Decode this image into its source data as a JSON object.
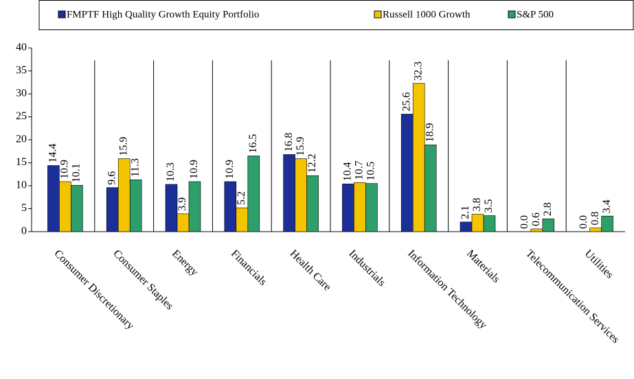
{
  "chart_data": {
    "type": "bar",
    "categories": [
      "Consumer Discretionary",
      "Consumer Staples",
      "Energy",
      "Financials",
      "Health Care",
      "Industrials",
      "Information Technology",
      "Materials",
      "Telecommunication Services",
      "Utilities"
    ],
    "series": [
      {
        "name": "FMPTF High Quality Growth Equity Portfolio",
        "color": "#1c2f99",
        "values": [
          14.4,
          9.6,
          10.3,
          10.9,
          16.8,
          10.4,
          25.6,
          2.1,
          0,
          0
        ],
        "value_labels": [
          "14.4",
          "9.6",
          "10.3",
          "10.9",
          "16.8",
          "10.4",
          "25.6",
          "2.1",
          "0.0",
          "0.0"
        ]
      },
      {
        "name": "Russell 1000 Growth",
        "color": "#f5c400",
        "values": [
          10.9,
          15.9,
          3.9,
          5.2,
          15.9,
          10.7,
          32.3,
          3.8,
          0.6,
          0.8
        ],
        "value_labels": [
          "10.9",
          "15.9",
          "3.9",
          "5.2",
          "15.9",
          "10.7",
          "32.3",
          "3.8",
          "0.6",
          "0.8"
        ]
      },
      {
        "name": "S&P 500",
        "color": "#2e9e6b",
        "values": [
          10.1,
          11.3,
          10.9,
          16.5,
          12.2,
          10.5,
          18.9,
          3.5,
          2.8,
          3.4
        ],
        "value_labels": [
          "10.1",
          "11.3",
          "10.9",
          "16.5",
          "12.2",
          "10.5",
          "18.9",
          "3.5",
          "2.8",
          "3.4"
        ]
      }
    ],
    "ylim": [
      0,
      40
    ],
    "yticks": [
      0,
      5,
      10,
      15,
      20,
      25,
      30,
      35,
      40
    ],
    "legend": "top"
  }
}
